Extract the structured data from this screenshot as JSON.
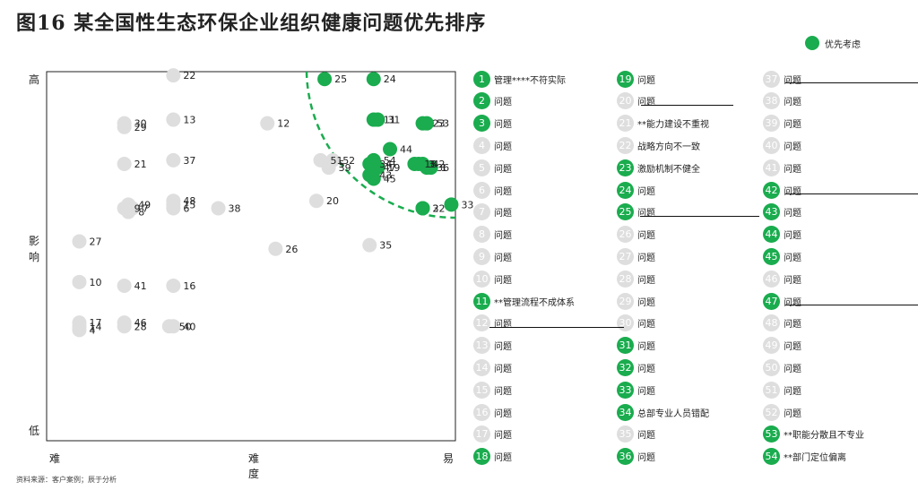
{
  "title": "图16    某全国性生态环保企业组织健康问题优先排序",
  "legend": {
    "label": "优先考虑",
    "color": "#1aac4e"
  },
  "colors": {
    "priority": "#1aac4e",
    "normal": "#dedede",
    "boundary": "#1aac4e"
  },
  "axes": {
    "y_high": "高",
    "y_mid": "影\n响",
    "y_low": "低",
    "x_left": "难",
    "x_mid": "难度",
    "x_right": "易"
  },
  "footnote": "资料来源：客户案例；辰于分析",
  "chart_data": {
    "type": "scatter",
    "xlabel": "难度",
    "ylabel": "影响",
    "xlim": [
      0,
      100
    ],
    "ylim": [
      0,
      100
    ],
    "boundary": "dashed arc around top-right corner separating priority issues",
    "points": [
      {
        "id": "1",
        "x": 94,
        "y": 74,
        "priority": true
      },
      {
        "id": "2",
        "x": 92,
        "y": 63,
        "priority": true
      },
      {
        "id": "3",
        "x": 91,
        "y": 75,
        "priority": true
      },
      {
        "id": "4",
        "x": 8,
        "y": 30,
        "priority": false
      },
      {
        "id": "5",
        "x": 69,
        "y": 75,
        "priority": false
      },
      {
        "id": "6",
        "x": 31,
        "y": 63,
        "priority": false
      },
      {
        "id": "7",
        "x": 21,
        "y": 63,
        "priority": false
      },
      {
        "id": "8",
        "x": 20,
        "y": 62,
        "priority": false
      },
      {
        "id": "9",
        "x": 19,
        "y": 63,
        "priority": false
      },
      {
        "id": "10",
        "x": 8,
        "y": 43,
        "priority": false
      },
      {
        "id": "11",
        "x": 80,
        "y": 87,
        "priority": true
      },
      {
        "id": "12",
        "x": 54,
        "y": 86,
        "priority": false
      },
      {
        "id": "13",
        "x": 31,
        "y": 87,
        "priority": false
      },
      {
        "id": "14",
        "x": 8,
        "y": 31,
        "priority": false
      },
      {
        "id": "15",
        "x": 31,
        "y": 64,
        "priority": false
      },
      {
        "id": "16",
        "x": 31,
        "y": 42,
        "priority": false
      },
      {
        "id": "17",
        "x": 8,
        "y": 32,
        "priority": false
      },
      {
        "id": "18",
        "x": 90,
        "y": 75,
        "priority": true
      },
      {
        "id": "19",
        "x": 81,
        "y": 74,
        "priority": true
      },
      {
        "id": "20",
        "x": 66,
        "y": 65,
        "priority": false
      },
      {
        "id": "21",
        "x": 19,
        "y": 75,
        "priority": false
      },
      {
        "id": "22",
        "x": 31,
        "y": 99,
        "priority": false
      },
      {
        "id": "23",
        "x": 92,
        "y": 86,
        "priority": true
      },
      {
        "id": "24",
        "x": 80,
        "y": 98,
        "priority": true
      },
      {
        "id": "25",
        "x": 68,
        "y": 98,
        "priority": true
      },
      {
        "id": "26",
        "x": 56,
        "y": 52,
        "priority": false
      },
      {
        "id": "27",
        "x": 8,
        "y": 54,
        "priority": false
      },
      {
        "id": "28",
        "x": 19,
        "y": 31,
        "priority": false
      },
      {
        "id": "29",
        "x": 19,
        "y": 85,
        "priority": false
      },
      {
        "id": "30",
        "x": 19,
        "y": 86,
        "priority": false
      },
      {
        "id": "31",
        "x": 81,
        "y": 87,
        "priority": true
      },
      {
        "id": "32",
        "x": 92,
        "y": 63,
        "priority": true
      },
      {
        "id": "33",
        "x": 99,
        "y": 64,
        "priority": true
      },
      {
        "id": "34",
        "x": 79,
        "y": 75,
        "priority": true
      },
      {
        "id": "35",
        "x": 79,
        "y": 53,
        "priority": false
      },
      {
        "id": "36",
        "x": 93,
        "y": 74,
        "priority": true
      },
      {
        "id": "37",
        "x": 31,
        "y": 76,
        "priority": false
      },
      {
        "id": "38",
        "x": 42,
        "y": 63,
        "priority": false
      },
      {
        "id": "39",
        "x": 69,
        "y": 74,
        "priority": false
      },
      {
        "id": "40",
        "x": 31,
        "y": 31,
        "priority": false
      },
      {
        "id": "41",
        "x": 19,
        "y": 42,
        "priority": false
      },
      {
        "id": "42",
        "x": 92,
        "y": 75,
        "priority": true
      },
      {
        "id": "43",
        "x": 79,
        "y": 72,
        "priority": true
      },
      {
        "id": "44",
        "x": 84,
        "y": 79,
        "priority": true
      },
      {
        "id": "45",
        "x": 80,
        "y": 71,
        "priority": true
      },
      {
        "id": "46",
        "x": 19,
        "y": 32,
        "priority": false
      },
      {
        "id": "47",
        "x": 80,
        "y": 74,
        "priority": true
      },
      {
        "id": "48",
        "x": 31,
        "y": 65,
        "priority": false
      },
      {
        "id": "49",
        "x": 20,
        "y": 64,
        "priority": false
      },
      {
        "id": "50",
        "x": 30,
        "y": 31,
        "priority": false
      },
      {
        "id": "51",
        "x": 67,
        "y": 76,
        "priority": false
      },
      {
        "id": "52",
        "x": 70,
        "y": 76,
        "priority": false
      },
      {
        "id": "53",
        "x": 93,
        "y": 86,
        "priority": true
      },
      {
        "id": "54",
        "x": 80,
        "y": 76,
        "priority": true
      }
    ]
  },
  "issues": [
    {
      "id": "1",
      "text": "管理****不符实际",
      "priority": true
    },
    {
      "id": "2",
      "text": "问题",
      "priority": true
    },
    {
      "id": "3",
      "text": "问题",
      "priority": true
    },
    {
      "id": "4",
      "text": "问题",
      "priority": false
    },
    {
      "id": "5",
      "text": "问题",
      "priority": false
    },
    {
      "id": "6",
      "text": "问题",
      "priority": false
    },
    {
      "id": "7",
      "text": "问题",
      "priority": false
    },
    {
      "id": "8",
      "text": "问题",
      "priority": false
    },
    {
      "id": "9",
      "text": "问题",
      "priority": false
    },
    {
      "id": "10",
      "text": "问题",
      "priority": false
    },
    {
      "id": "11",
      "text": "**管理流程不成体系",
      "priority": true
    },
    {
      "id": "12",
      "text": "问题",
      "priority": false
    },
    {
      "id": "13",
      "text": "问题",
      "priority": false
    },
    {
      "id": "14",
      "text": "问题",
      "priority": false
    },
    {
      "id": "15",
      "text": "问题",
      "priority": false
    },
    {
      "id": "16",
      "text": "问题",
      "priority": false
    },
    {
      "id": "17",
      "text": "问题",
      "priority": false
    },
    {
      "id": "18",
      "text": "问题",
      "priority": true
    },
    {
      "id": "19",
      "text": "问题",
      "priority": true
    },
    {
      "id": "20",
      "text": "问题",
      "priority": false
    },
    {
      "id": "21",
      "text": "**能力建设不重视",
      "priority": false
    },
    {
      "id": "22",
      "text": "战略方向不一致",
      "priority": false
    },
    {
      "id": "23",
      "text": "激励机制不健全",
      "priority": true
    },
    {
      "id": "24",
      "text": "问题",
      "priority": true
    },
    {
      "id": "25",
      "text": "问题",
      "priority": true
    },
    {
      "id": "26",
      "text": "问题",
      "priority": false
    },
    {
      "id": "27",
      "text": "问题",
      "priority": false
    },
    {
      "id": "28",
      "text": "问题",
      "priority": false
    },
    {
      "id": "29",
      "text": "问题",
      "priority": false
    },
    {
      "id": "30",
      "text": "问题",
      "priority": false
    },
    {
      "id": "31",
      "text": "问题",
      "priority": true
    },
    {
      "id": "32",
      "text": "问题",
      "priority": true
    },
    {
      "id": "33",
      "text": "问题",
      "priority": true
    },
    {
      "id": "34",
      "text": "总部专业人员错配",
      "priority": true
    },
    {
      "id": "35",
      "text": "问题",
      "priority": false
    },
    {
      "id": "36",
      "text": "问题",
      "priority": true
    },
    {
      "id": "37",
      "text": "问题",
      "priority": false
    },
    {
      "id": "38",
      "text": "问题",
      "priority": false
    },
    {
      "id": "39",
      "text": "问题",
      "priority": false
    },
    {
      "id": "40",
      "text": "问题",
      "priority": false
    },
    {
      "id": "41",
      "text": "问题",
      "priority": false
    },
    {
      "id": "42",
      "text": "问题",
      "priority": true
    },
    {
      "id": "43",
      "text": "问题",
      "priority": true
    },
    {
      "id": "44",
      "text": "问题",
      "priority": true
    },
    {
      "id": "45",
      "text": "问题",
      "priority": true
    },
    {
      "id": "46",
      "text": "问题",
      "priority": false
    },
    {
      "id": "47",
      "text": "问题",
      "priority": true
    },
    {
      "id": "48",
      "text": "问题",
      "priority": false
    },
    {
      "id": "49",
      "text": "问题",
      "priority": false
    },
    {
      "id": "50",
      "text": "问题",
      "priority": false
    },
    {
      "id": "51",
      "text": "问题",
      "priority": false
    },
    {
      "id": "52",
      "text": "问题",
      "priority": false
    },
    {
      "id": "53",
      "text": "**职能分散且不专业",
      "priority": true
    },
    {
      "id": "54",
      "text": "**部门定位偏离",
      "priority": true
    }
  ]
}
